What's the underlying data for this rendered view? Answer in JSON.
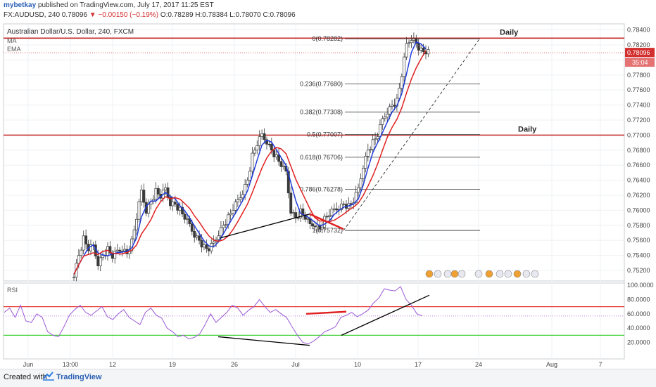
{
  "header": {
    "user": "mybetkay",
    "published": "published on TradingView.com, July 17, 2017 11:25 EST",
    "symbol_line": "FX:AUDUSD, 240  0.78096",
    "change": "▼ −0.00150 (−0.19%)",
    "ohlc": "O:0.78289 H:0.78384 L:0.78070 C:0.78096"
  },
  "legend": {
    "title": "Australian Dollar/U.S. Dollar, 240, FXCM",
    "ma": "MA",
    "ema": "EMA"
  },
  "footer": {
    "created_with": "Created with",
    "brand": "TradingView"
  },
  "colors": {
    "candle": "#3a3a3a",
    "ma_blue": "#1f3ad8",
    "ema_red": "#e02020",
    "resistance": "#c62828",
    "rsi": "#9b59d6",
    "rsi_upper": "#e53935",
    "rsi_lower": "#43d13a",
    "current_price": "#d32f2f"
  },
  "chart_data": {
    "type": "candlestick",
    "title": "Australian Dollar/U.S. Dollar, 240, FXCM",
    "yaxis_ticks": [
      "0.78400",
      "0.78200",
      "0.78000",
      "0.77800",
      "0.77600",
      "0.77400",
      "0.77200",
      "0.77000",
      "0.76800",
      "0.76600",
      "0.76400",
      "0.76200",
      "0.76000",
      "0.75800",
      "0.75600",
      "0.75400",
      "0.75200"
    ],
    "ylim": [
      0.7506,
      0.7848
    ],
    "xaxis_ticks": [
      "Jun",
      "13:00",
      "12",
      "19",
      "26",
      "Jul",
      "10",
      "17",
      "24",
      "Aug",
      "7"
    ],
    "current_price": "0.78096",
    "countdown": "35:04",
    "horizontal_levels": [
      {
        "label": "Daily",
        "price": 0.7829
      },
      {
        "label": "Daily",
        "price": 0.77
      }
    ],
    "fibonacci": [
      {
        "label": "0(0.78282)",
        "price": 0.78282
      },
      {
        "label": "0.236(0.77680)",
        "price": 0.7768
      },
      {
        "label": "0.382(0.77308)",
        "price": 0.77308
      },
      {
        "label": "0.5(0.77007)",
        "price": 0.77007
      },
      {
        "label": "0.618(0.76706)",
        "price": 0.76706
      },
      {
        "label": "0.786(0.76278)",
        "price": 0.76278
      },
      {
        "label": "1(0.75732)",
        "price": 0.75732
      }
    ],
    "price_path": [
      0.7515,
      0.754,
      0.7562,
      0.7548,
      0.7552,
      0.753,
      0.754,
      0.7548,
      0.7538,
      0.7545,
      0.755,
      0.7542,
      0.7558,
      0.759,
      0.7625,
      0.76,
      0.7612,
      0.7625,
      0.7618,
      0.7628,
      0.761,
      0.7608,
      0.76,
      0.759,
      0.758,
      0.7568,
      0.756,
      0.755,
      0.7548,
      0.7556,
      0.757,
      0.758,
      0.759,
      0.7602,
      0.7612,
      0.7625,
      0.764,
      0.7672,
      0.7688,
      0.77,
      0.7692,
      0.768,
      0.767,
      0.766,
      0.765,
      0.76,
      0.759,
      0.7598,
      0.759,
      0.758,
      0.7582,
      0.7575,
      0.7588,
      0.7595,
      0.76,
      0.7605,
      0.7608,
      0.7605,
      0.7612,
      0.7628,
      0.766,
      0.768,
      0.769,
      0.77,
      0.772,
      0.7732,
      0.774,
      0.7745,
      0.778,
      0.782,
      0.783,
      0.7822,
      0.7812,
      0.781
    ],
    "rsi": {
      "label": "RSI",
      "ticks": [
        "100.0000",
        "80.0000",
        "60.0000",
        "40.0000",
        "20.0000"
      ],
      "levels": [
        70,
        30
      ],
      "last_value": 57,
      "values": [
        62,
        68,
        55,
        72,
        50,
        48,
        60,
        55,
        35,
        30,
        28,
        42,
        58,
        66,
        72,
        62,
        58,
        64,
        70,
        56,
        52,
        60,
        66,
        55,
        50,
        45,
        62,
        68,
        58,
        54,
        40,
        35,
        28,
        30,
        25,
        27,
        32,
        45,
        60,
        48,
        55,
        62,
        72,
        68,
        58,
        65,
        70,
        80,
        70,
        62,
        66,
        60,
        55,
        42,
        30,
        20,
        18,
        22,
        28,
        35,
        38,
        42,
        55,
        58,
        62,
        56,
        60,
        65,
        75,
        82,
        95,
        93,
        92,
        98,
        80,
        72,
        60,
        57
      ]
    },
    "annotations": [
      "Daily resistance line at 0.7829",
      "Daily resistance line at 0.7700",
      "Bullish divergence lines on price and RSI",
      "Dashed uptrend line from 1.0 fib"
    ]
  }
}
